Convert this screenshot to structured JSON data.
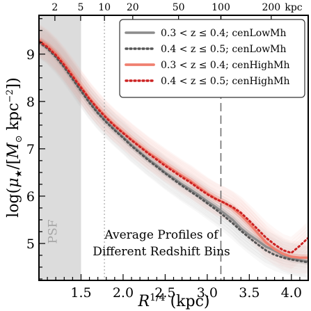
{
  "chart_data": {
    "type": "line",
    "xlabel": "R^{1/4} (kpc)",
    "ylabel": "log(μ★/[M⊙ kpc⁻²])",
    "xlim": [
      1.0,
      4.2
    ],
    "ylim": [
      4.22,
      9.82
    ],
    "x_ticks": [
      "1.5",
      "2.0",
      "2.5",
      "3.0",
      "3.5",
      "4.0"
    ],
    "y_ticks": [
      "5",
      "6",
      "7",
      "8",
      "9"
    ],
    "top_axis": {
      "unit_label": "kpc",
      "ticks": [
        "2",
        "5",
        "10",
        "20",
        "50",
        "100",
        "200"
      ],
      "tick_values_kpc": [
        2,
        5,
        10,
        20,
        50,
        100,
        200
      ]
    },
    "psf_region": {
      "label": "PSF",
      "x_range": [
        1.0,
        1.5
      ]
    },
    "reference_lines": [
      {
        "x": 1.778,
        "style": "dotted"
      },
      {
        "x": 3.162,
        "style": "dashed"
      }
    ],
    "annotation": [
      "Average Profiles of",
      "Different Redshift Bins"
    ],
    "legend_position": "top-right",
    "colors": {
      "low_mass": "#8c8c8c",
      "low_mass_dark": "#555555",
      "high_mass": "#f08070",
      "high_mass_dark": "#cc2222",
      "psf_fill": "#dcdcdc"
    },
    "series": [
      {
        "name": "0.3 < z ≤ 0.4; cenLowMh",
        "style": "solid",
        "x": [
          1.0,
          1.1,
          1.2,
          1.3,
          1.4,
          1.5,
          1.6,
          1.7,
          1.8,
          1.9,
          2.0,
          2.1,
          2.2,
          2.3,
          2.4,
          2.5,
          2.6,
          2.7,
          2.8,
          2.9,
          3.0,
          3.1,
          3.2,
          3.3,
          3.4,
          3.5,
          3.6,
          3.7,
          3.8,
          3.9,
          4.0,
          4.1,
          4.2
        ],
        "y": [
          9.28,
          9.15,
          8.97,
          8.75,
          8.5,
          8.24,
          7.99,
          7.77,
          7.58,
          7.41,
          7.25,
          7.08,
          6.93,
          6.78,
          6.65,
          6.5,
          6.38,
          6.25,
          6.14,
          6.02,
          5.89,
          5.77,
          5.64,
          5.5,
          5.32,
          5.18,
          5.06,
          4.93,
          4.85,
          4.75,
          4.68,
          4.65,
          4.62
        ]
      },
      {
        "name": "0.4 < z ≤ 0.5; cenLowMh",
        "style": "dotted",
        "x": [
          1.0,
          1.1,
          1.2,
          1.3,
          1.4,
          1.5,
          1.6,
          1.7,
          1.8,
          1.9,
          2.0,
          2.1,
          2.2,
          2.3,
          2.4,
          2.5,
          2.6,
          2.7,
          2.8,
          2.9,
          3.0,
          3.1,
          3.2,
          3.3,
          3.4,
          3.5,
          3.6,
          3.7,
          3.8,
          3.9,
          4.0,
          4.1,
          4.2
        ],
        "y": [
          9.25,
          9.12,
          8.94,
          8.72,
          8.47,
          8.22,
          7.97,
          7.75,
          7.56,
          7.39,
          7.23,
          7.06,
          6.91,
          6.76,
          6.62,
          6.48,
          6.35,
          6.22,
          6.1,
          5.98,
          5.85,
          5.72,
          5.58,
          5.43,
          5.27,
          5.12,
          4.98,
          4.85,
          4.76,
          4.7,
          4.66,
          4.63,
          4.6
        ]
      },
      {
        "name": "0.3 < z ≤ 0.4; cenHighMh",
        "style": "solid",
        "x": [
          1.0,
          1.1,
          1.2,
          1.3,
          1.4,
          1.5,
          1.6,
          1.7,
          1.8,
          1.9,
          2.0,
          2.1,
          2.2,
          2.3,
          2.4,
          2.5,
          2.6,
          2.7,
          2.8,
          2.9,
          3.0,
          3.1,
          3.2,
          3.3,
          3.4,
          3.5,
          3.6,
          3.7,
          3.8,
          3.9,
          4.0,
          4.1,
          4.2
        ],
        "y": [
          9.3,
          9.18,
          9.01,
          8.8,
          8.56,
          8.31,
          8.07,
          7.86,
          7.67,
          7.5,
          7.35,
          7.2,
          7.06,
          6.92,
          6.8,
          6.67,
          6.55,
          6.43,
          6.32,
          6.19,
          6.06,
          5.95,
          5.86,
          5.75,
          5.6,
          5.42,
          5.22,
          5.02,
          4.88,
          4.78,
          4.72,
          4.7,
          4.7
        ]
      },
      {
        "name": "0.4 < z ≤ 0.5; cenHighMh",
        "style": "dotted",
        "x": [
          1.0,
          1.1,
          1.2,
          1.3,
          1.4,
          1.5,
          1.6,
          1.7,
          1.8,
          1.9,
          2.0,
          2.1,
          2.2,
          2.3,
          2.4,
          2.5,
          2.6,
          2.7,
          2.8,
          2.9,
          3.0,
          3.1,
          3.2,
          3.3,
          3.4,
          3.5,
          3.6,
          3.7,
          3.8,
          3.9,
          4.0,
          4.1,
          4.2
        ],
        "y": [
          9.27,
          9.15,
          8.98,
          8.77,
          8.53,
          8.29,
          8.05,
          7.84,
          7.65,
          7.48,
          7.33,
          7.18,
          7.04,
          6.9,
          6.77,
          6.64,
          6.52,
          6.4,
          6.29,
          6.16,
          6.04,
          5.94,
          5.86,
          5.77,
          5.65,
          5.48,
          5.3,
          5.12,
          4.98,
          4.86,
          4.8,
          4.95,
          5.12
        ]
      }
    ]
  }
}
